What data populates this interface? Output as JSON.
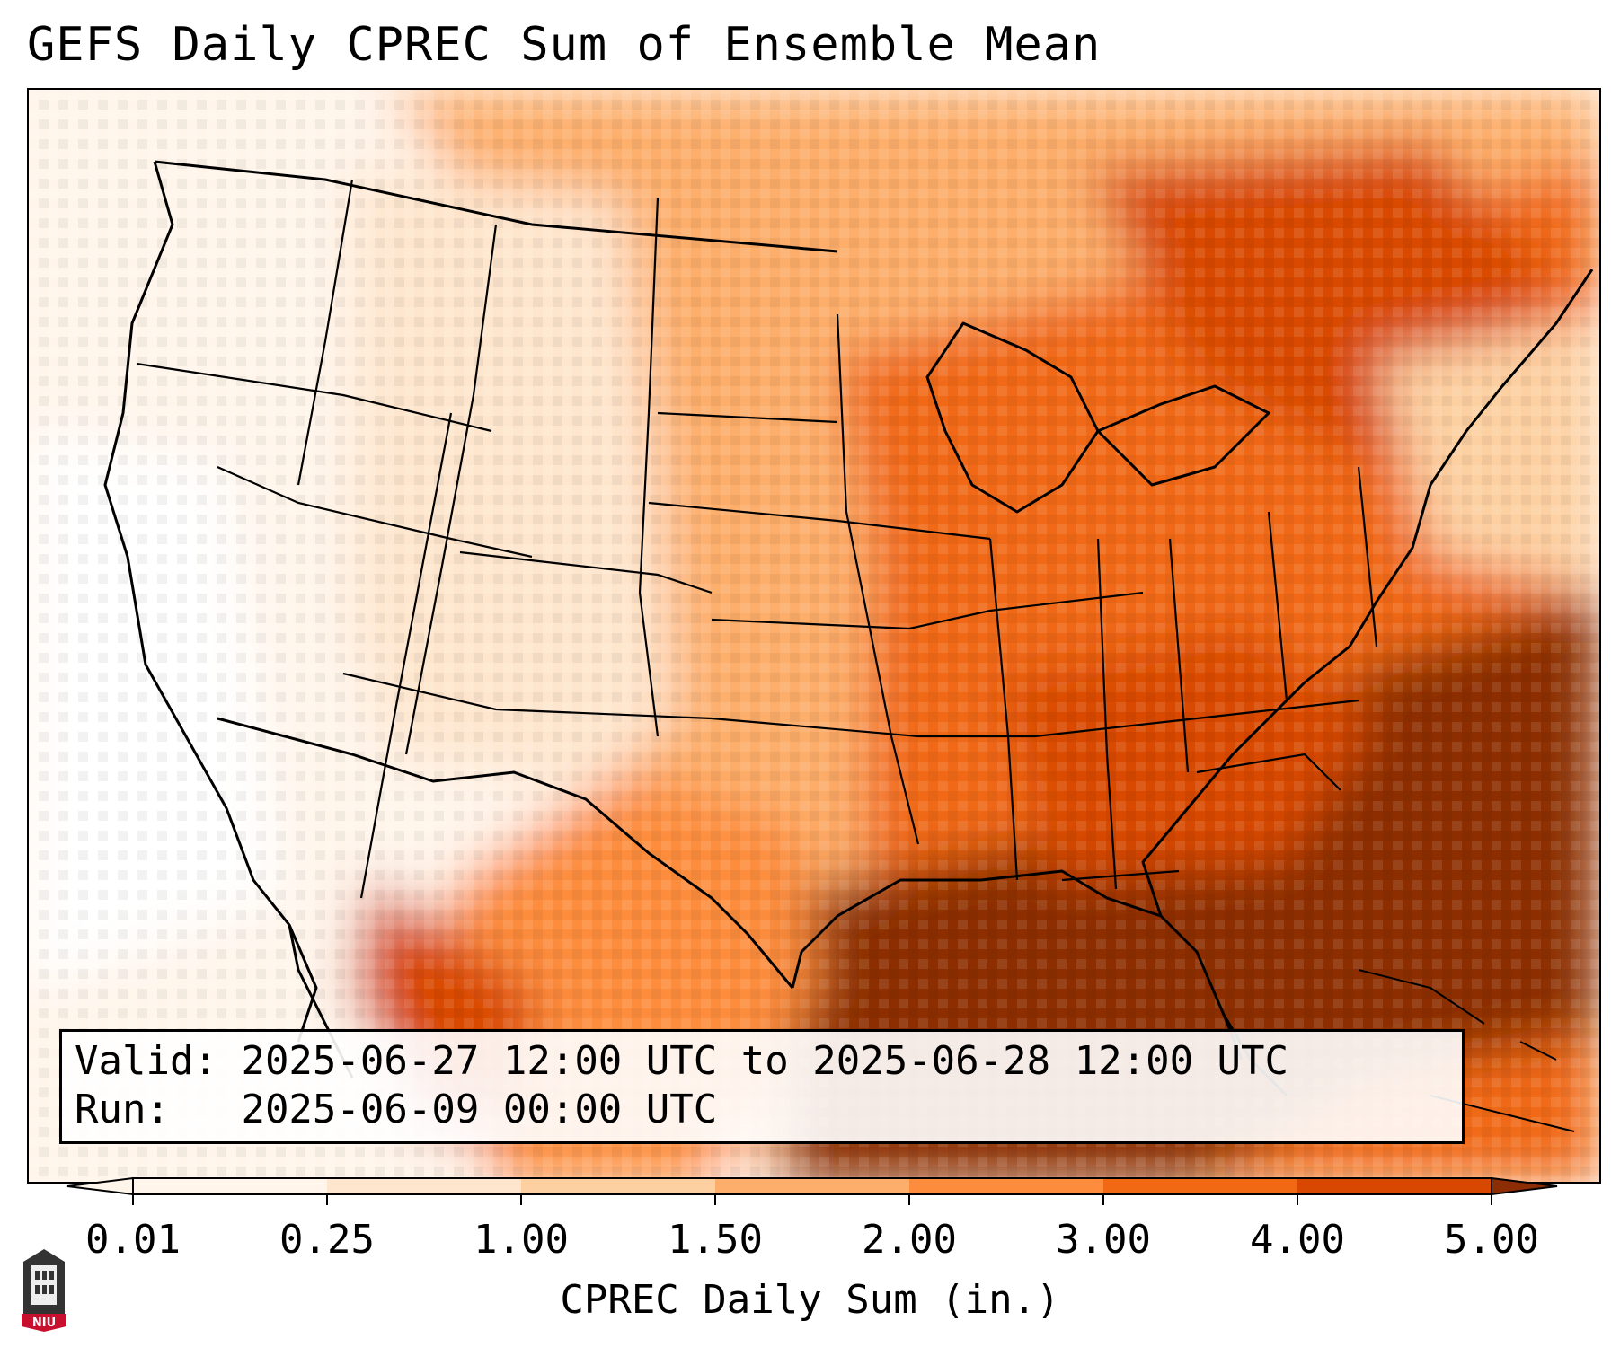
{
  "title": "GEFS Daily CPREC Sum of Ensemble Mean",
  "info": {
    "valid_label": "Valid:",
    "valid_value": "2025-06-27 12:00 UTC to 2025-06-28 12:00 UTC",
    "run_label": "Run:",
    "run_value": "2025-06-09 00:00 UTC"
  },
  "colorbar": {
    "label": "CPREC Daily Sum (in.)",
    "ticks": [
      "0.01",
      "0.25",
      "1.00",
      "1.50",
      "2.00",
      "3.00",
      "4.00",
      "5.00"
    ],
    "colors": [
      "#fff5eb",
      "#fee6ce",
      "#fdd0a2",
      "#fdae6b",
      "#fd8d3c",
      "#f16913",
      "#d94801",
      "#8c2d04"
    ]
  },
  "logo": {
    "text": "NIU",
    "icon": "niu-tower-logo-icon"
  }
}
